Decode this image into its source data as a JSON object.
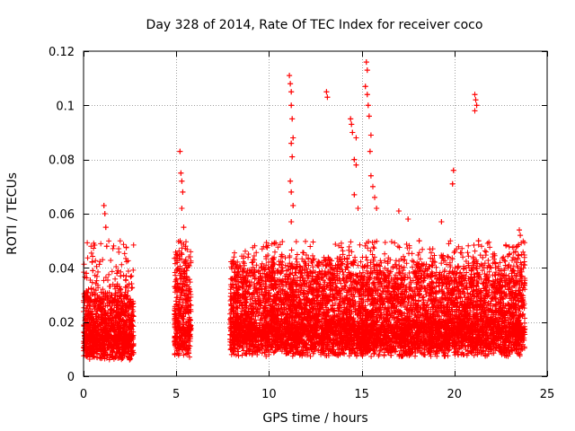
{
  "chart_data": {
    "type": "scatter",
    "title": "Day 328 of 2014, Rate Of TEC Index for receiver coco",
    "xlabel": "GPS time / hours",
    "ylabel": "ROTI / TECUs",
    "xlim": [
      0,
      25
    ],
    "ylim": [
      0,
      0.12
    ],
    "x_ticks": [
      0,
      5,
      10,
      15,
      20,
      25
    ],
    "x_tick_labels": [
      "0",
      "5",
      "10",
      "15",
      "20",
      "25"
    ],
    "y_ticks": [
      0,
      0.02,
      0.04,
      0.06,
      0.08,
      0.1,
      0.12
    ],
    "y_tick_labels": [
      "0",
      "0.02",
      "0.04",
      "0.06",
      "0.08",
      "0.1",
      "0.12"
    ],
    "grid": true,
    "marker": "+",
    "color": "#ff0000",
    "data_segments": [
      {
        "x_start": 0.0,
        "x_end": 2.7,
        "typical": 0.013,
        "spread": 0.015
      },
      {
        "x_start": 4.9,
        "x_end": 5.8,
        "typical": 0.015,
        "spread": 0.025
      },
      {
        "x_start": 7.9,
        "x_end": 23.8,
        "typical": 0.016,
        "spread": 0.02
      }
    ],
    "notable_points": [
      {
        "x": 0.15,
        "y": 0.038
      },
      {
        "x": 0.5,
        "y": 0.039
      },
      {
        "x": 1.1,
        "y": 0.063
      },
      {
        "x": 1.15,
        "y": 0.06
      },
      {
        "x": 1.2,
        "y": 0.055
      },
      {
        "x": 1.25,
        "y": 0.048
      },
      {
        "x": 1.8,
        "y": 0.038
      },
      {
        "x": 2.0,
        "y": 0.037
      },
      {
        "x": 2.3,
        "y": 0.037
      },
      {
        "x": 5.2,
        "y": 0.083
      },
      {
        "x": 5.25,
        "y": 0.075
      },
      {
        "x": 5.3,
        "y": 0.072
      },
      {
        "x": 5.35,
        "y": 0.068
      },
      {
        "x": 5.3,
        "y": 0.062
      },
      {
        "x": 5.4,
        "y": 0.055
      },
      {
        "x": 5.5,
        "y": 0.048
      },
      {
        "x": 5.3,
        "y": 0.045
      },
      {
        "x": 11.1,
        "y": 0.111
      },
      {
        "x": 11.15,
        "y": 0.108
      },
      {
        "x": 11.2,
        "y": 0.105
      },
      {
        "x": 11.2,
        "y": 0.1
      },
      {
        "x": 11.25,
        "y": 0.095
      },
      {
        "x": 11.3,
        "y": 0.088
      },
      {
        "x": 11.2,
        "y": 0.086
      },
      {
        "x": 11.25,
        "y": 0.081
      },
      {
        "x": 11.15,
        "y": 0.072
      },
      {
        "x": 11.2,
        "y": 0.068
      },
      {
        "x": 11.3,
        "y": 0.063
      },
      {
        "x": 11.2,
        "y": 0.057
      },
      {
        "x": 13.1,
        "y": 0.105
      },
      {
        "x": 13.15,
        "y": 0.103
      },
      {
        "x": 14.4,
        "y": 0.095
      },
      {
        "x": 14.45,
        "y": 0.093
      },
      {
        "x": 14.5,
        "y": 0.09
      },
      {
        "x": 14.7,
        "y": 0.088
      },
      {
        "x": 14.6,
        "y": 0.08
      },
      {
        "x": 14.7,
        "y": 0.078
      },
      {
        "x": 14.6,
        "y": 0.067
      },
      {
        "x": 14.8,
        "y": 0.062
      },
      {
        "x": 15.25,
        "y": 0.116
      },
      {
        "x": 15.3,
        "y": 0.113
      },
      {
        "x": 15.2,
        "y": 0.107
      },
      {
        "x": 15.3,
        "y": 0.104
      },
      {
        "x": 15.35,
        "y": 0.1
      },
      {
        "x": 15.4,
        "y": 0.096
      },
      {
        "x": 15.5,
        "y": 0.089
      },
      {
        "x": 15.45,
        "y": 0.083
      },
      {
        "x": 15.5,
        "y": 0.074
      },
      {
        "x": 15.6,
        "y": 0.07
      },
      {
        "x": 15.7,
        "y": 0.066
      },
      {
        "x": 15.8,
        "y": 0.062
      },
      {
        "x": 17.0,
        "y": 0.061
      },
      {
        "x": 17.5,
        "y": 0.058
      },
      {
        "x": 18.1,
        "y": 0.05
      },
      {
        "x": 19.3,
        "y": 0.057
      },
      {
        "x": 19.95,
        "y": 0.076
      },
      {
        "x": 19.9,
        "y": 0.071
      },
      {
        "x": 21.1,
        "y": 0.104
      },
      {
        "x": 21.15,
        "y": 0.102
      },
      {
        "x": 21.2,
        "y": 0.1
      },
      {
        "x": 21.1,
        "y": 0.098
      },
      {
        "x": 21.3,
        "y": 0.05
      },
      {
        "x": 23.5,
        "y": 0.054
      },
      {
        "x": 23.55,
        "y": 0.052
      },
      {
        "x": 23.4,
        "y": 0.048
      },
      {
        "x": 23.3,
        "y": 0.046
      }
    ]
  },
  "colors": {
    "series": "#ff0000",
    "grid": "#a0a0a0",
    "axes": "#000000"
  }
}
